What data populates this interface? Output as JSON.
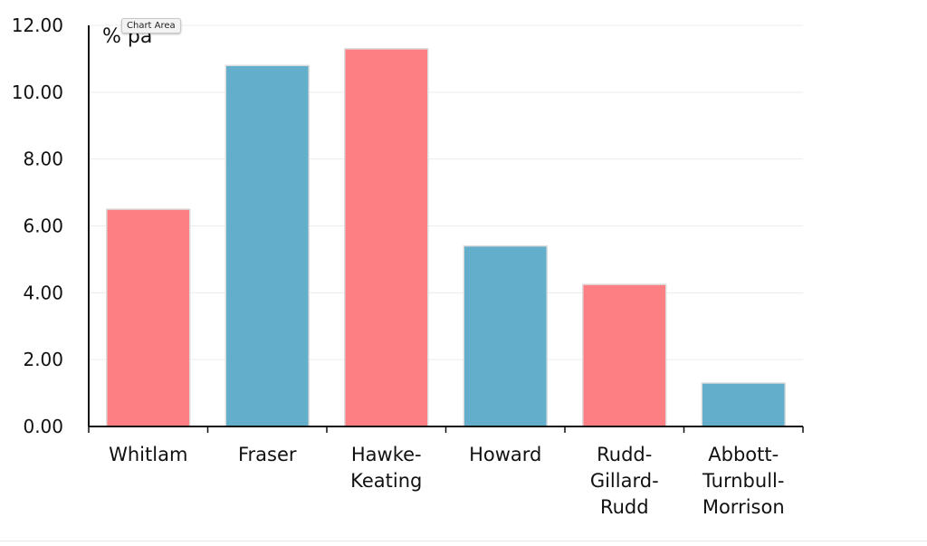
{
  "tooltip": {
    "text": "Chart Area"
  },
  "chart_data": {
    "type": "bar",
    "title": "",
    "xlabel": "",
    "ylabel": "% pa",
    "ylim": [
      0,
      12
    ],
    "y_ticks": [
      "0.00",
      "2.00",
      "4.00",
      "6.00",
      "8.00",
      "10.00",
      "12.00"
    ],
    "grid": true,
    "categories": [
      [
        "Whitlam"
      ],
      [
        "Fraser"
      ],
      [
        "Hawke-",
        "Keating"
      ],
      [
        "Howard"
      ],
      [
        "Rudd-",
        "Gillard-",
        "Rudd"
      ],
      [
        "Abbott-",
        "Turnbull-",
        "Morrison"
      ]
    ],
    "values": [
      6.5,
      10.8,
      11.3,
      5.4,
      4.25,
      1.3
    ],
    "colors": [
      "#fd7e83",
      "#63aecb",
      "#fd7e83",
      "#63aecb",
      "#fd7e83",
      "#63aecb"
    ]
  }
}
